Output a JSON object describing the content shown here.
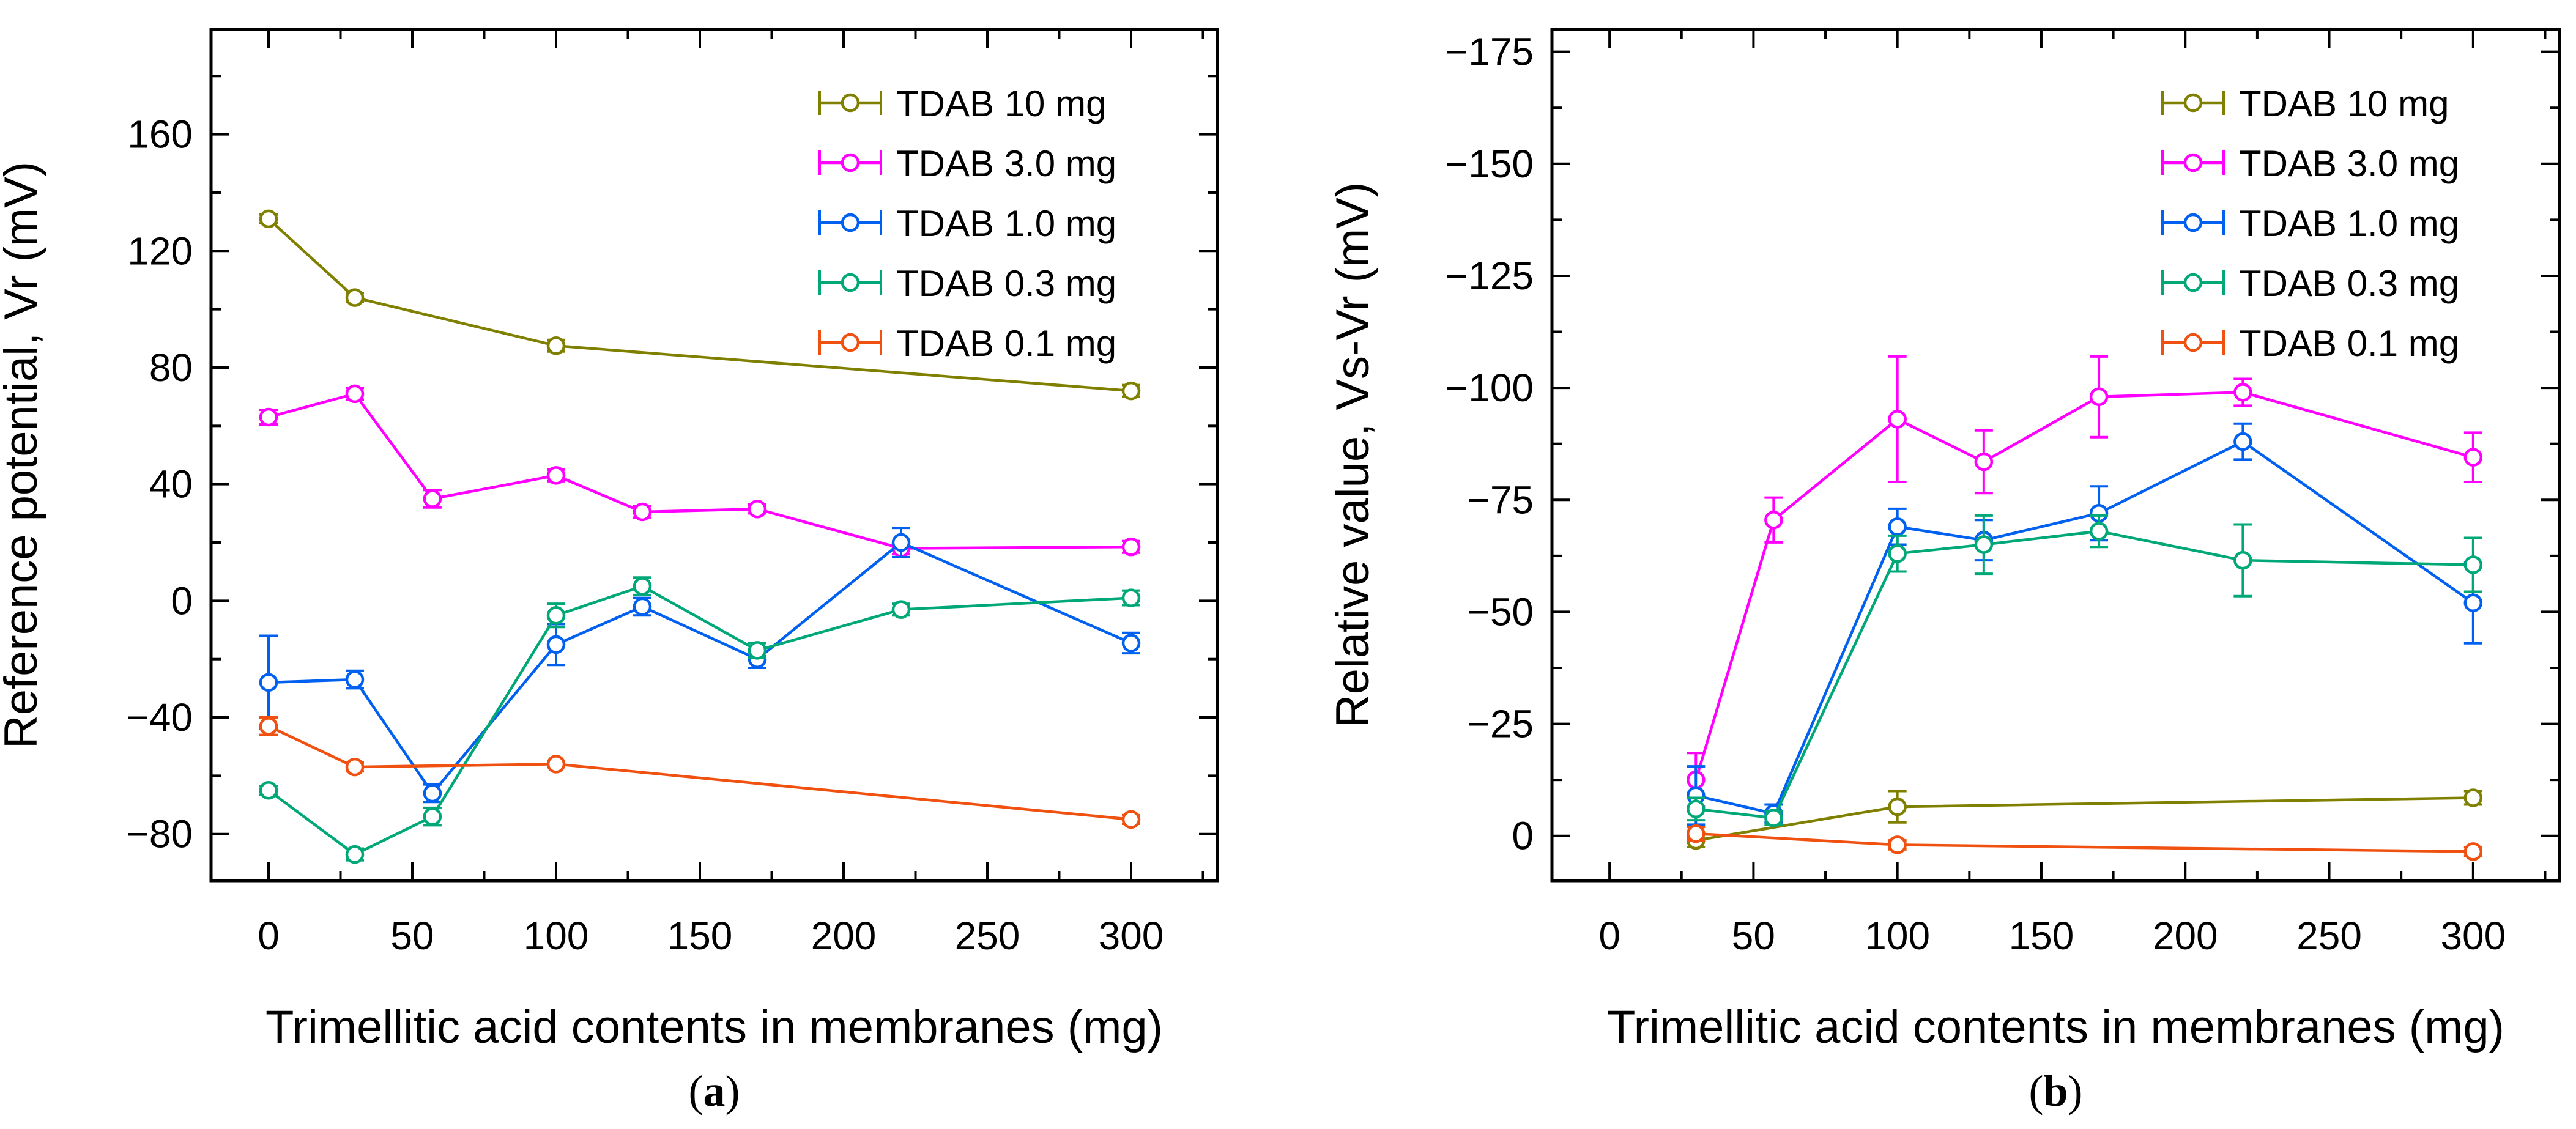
{
  "chart_data": [
    {
      "id": "a",
      "type": "line",
      "panel_label": "a",
      "xlabel": "Trimellitic acid contents in membranes (mg)",
      "ylabel": "Reference potential, Vr (mV)",
      "xlim": [
        -20,
        330
      ],
      "ylim": [
        -96,
        196
      ],
      "y_reversed": false,
      "xticks": [
        0,
        50,
        100,
        150,
        200,
        250,
        300
      ],
      "xtick_labels": [
        "0",
        "50",
        "100",
        "150",
        "200",
        "250",
        "300"
      ],
      "yticks": [
        -80,
        -40,
        0,
        40,
        80,
        120,
        160
      ],
      "ytick_labels": [
        "−80",
        "−40",
        "0",
        "40",
        "80",
        "120",
        "160"
      ],
      "legend_position": "top-right",
      "series": [
        {
          "name": "TDAB 10 mg",
          "color": "#808000",
          "x": [
            0,
            30,
            100,
            300
          ],
          "y": [
            131,
            104,
            87.5,
            72
          ],
          "err": [
            1.5,
            1.5,
            2,
            2
          ]
        },
        {
          "name": "TDAB 3.0 mg",
          "color": "#ff00ff",
          "x": [
            0,
            30,
            57,
            100,
            130,
            170,
            220,
            300
          ],
          "y": [
            63,
            71,
            35,
            43,
            30.5,
            31.5,
            18,
            18.5
          ],
          "err": [
            2.5,
            2,
            3,
            2,
            2,
            1.5,
            2,
            2
          ]
        },
        {
          "name": "TDAB 1.0 mg",
          "color": "#0060f0",
          "x": [
            0,
            30,
            57,
            100,
            130,
            170,
            220,
            300
          ],
          "y": [
            -28,
            -27,
            -66,
            -15,
            -2,
            -20,
            20,
            -14.5
          ],
          "err": [
            16,
            3,
            3,
            7,
            3,
            3,
            5,
            3.5
          ]
        },
        {
          "name": "TDAB 0.3 mg",
          "color": "#00a878",
          "x": [
            0,
            30,
            57,
            100,
            130,
            170,
            220,
            300
          ],
          "y": [
            -65,
            -87,
            -74,
            -5,
            5,
            -17,
            -3,
            1
          ],
          "err": [
            1.5,
            2,
            3,
            4,
            3,
            2.5,
            2,
            2.5
          ]
        },
        {
          "name": "TDAB 0.1 mg",
          "color": "#f05010",
          "x": [
            0,
            30,
            100,
            300
          ],
          "y": [
            -43,
            -57,
            -56,
            -75
          ],
          "err": [
            3,
            1.5,
            1,
            1.5
          ]
        }
      ]
    },
    {
      "id": "b",
      "type": "line",
      "panel_label": "b",
      "xlabel": "Trimellitic acid contents in membranes (mg)",
      "ylabel": "Relative value, Vs-Vr (mV)",
      "xlim": [
        -20,
        330
      ],
      "ylim": [
        10,
        -180
      ],
      "y_reversed": true,
      "xticks": [
        0,
        50,
        100,
        150,
        200,
        250,
        300
      ],
      "xtick_labels": [
        "0",
        "50",
        "100",
        "150",
        "200",
        "250",
        "300"
      ],
      "yticks": [
        0,
        -25,
        -50,
        -75,
        -100,
        -125,
        -150,
        -175
      ],
      "ytick_labels": [
        "0",
        "−25",
        "−50",
        "−75",
        "−100",
        "−125",
        "−150",
        "−175"
      ],
      "legend_position": "top-right",
      "series": [
        {
          "name": "TDAB 10 mg",
          "color": "#808000",
          "x": [
            30,
            100,
            300
          ],
          "y": [
            1,
            -6.5,
            -8.5
          ],
          "err": [
            1.5,
            3.5,
            1.5
          ]
        },
        {
          "name": "TDAB 3.0 mg",
          "color": "#ff00ff",
          "x": [
            30,
            57,
            100,
            130,
            170,
            220,
            300
          ],
          "y": [
            -12.5,
            -70.5,
            -93,
            -83.5,
            -98,
            -99,
            -84.5
          ],
          "err": [
            6,
            5,
            14,
            7,
            9,
            3,
            5.5
          ]
        },
        {
          "name": "TDAB 1.0 mg",
          "color": "#0060f0",
          "x": [
            30,
            57,
            100,
            130,
            170,
            220,
            300
          ],
          "y": [
            -9,
            -5,
            -69,
            -66,
            -72,
            -88,
            -52
          ],
          "err": [
            6.5,
            2,
            4,
            4.5,
            6,
            4,
            9
          ]
        },
        {
          "name": "TDAB 0.3 mg",
          "color": "#00a878",
          "x": [
            30,
            57,
            100,
            130,
            170,
            220,
            300
          ],
          "y": [
            -6,
            -4,
            -63,
            -65,
            -68,
            -61.5,
            -60.5
          ],
          "err": [
            2.5,
            1.5,
            4,
            6.5,
            3.5,
            8,
            6
          ]
        },
        {
          "name": "TDAB 0.1 mg",
          "color": "#f05010",
          "x": [
            30,
            100,
            300
          ],
          "y": [
            -0.5,
            2,
            3.5
          ],
          "err": [
            1.5,
            1,
            1
          ]
        }
      ]
    }
  ]
}
